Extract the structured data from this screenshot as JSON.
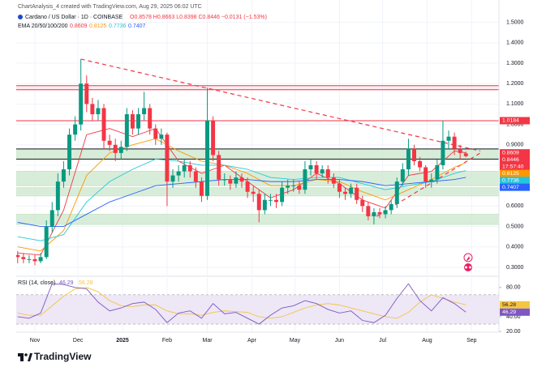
{
  "header": {
    "credit": "ChartAnalysis_4 created with TradingView.com, Aug 29, 2025 06:02 UTC"
  },
  "footer": {
    "brand": "TradingView"
  },
  "chart_data": {
    "type": "candlestick",
    "symbol": "Cardano / US Dollar · 1D · COINBASE",
    "ohlc_text": "O0.8578 H0.8663 L0.8398 C0.8446 −0.0131 (−1.53%)",
    "ema_label": "EMA 20/50/100/200",
    "countdown": "17:57:40",
    "up_color": "#089981",
    "down_color": "#f23645",
    "x": [
      0,
      4,
      8,
      12,
      16,
      20,
      24,
      28,
      32,
      36,
      40,
      44,
      48,
      52,
      56,
      60,
      64,
      68,
      72,
      76,
      80,
      84,
      88,
      92,
      96,
      100,
      104,
      108,
      112,
      116,
      120,
      124,
      128,
      132,
      136,
      140,
      144,
      148,
      152,
      156,
      160,
      164,
      168,
      172,
      176,
      180,
      184,
      188,
      192,
      196,
      200,
      204,
      208,
      212,
      216,
      220,
      224,
      228,
      232,
      236,
      240,
      244,
      248,
      252,
      256,
      260,
      264,
      268,
      272,
      276,
      280,
      284,
      288,
      292,
      296,
      300,
      304,
      308,
      312
    ],
    "open": [
      0.36,
      0.35,
      0.34,
      0.34,
      0.33,
      0.35,
      0.5,
      0.58,
      0.72,
      0.78,
      0.95,
      1.0,
      1.2,
      1.1,
      1.05,
      1.08,
      0.92,
      0.9,
      0.86,
      0.89,
      1.05,
      0.98,
      1.05,
      1.08,
      0.98,
      0.93,
      0.95,
      0.72,
      0.75,
      0.77,
      0.8,
      0.77,
      0.72,
      0.65,
      1.02,
      0.85,
      0.73,
      0.73,
      0.71,
      0.74,
      0.72,
      0.67,
      0.66,
      0.58,
      0.63,
      0.63,
      0.62,
      0.69,
      0.7,
      0.7,
      0.68,
      0.78,
      0.8,
      0.76,
      0.78,
      0.74,
      0.71,
      0.67,
      0.66,
      0.69,
      0.63,
      0.6,
      0.55,
      0.57,
      0.56,
      0.58,
      0.61,
      0.72,
      0.78,
      0.88,
      0.82,
      0.79,
      0.72,
      0.73,
      0.8,
      0.92,
      0.94,
      0.88,
      0.8578
    ],
    "high": [
      0.38,
      0.37,
      0.36,
      0.36,
      0.37,
      0.53,
      0.62,
      0.76,
      0.82,
      0.98,
      1.04,
      1.32,
      1.24,
      1.13,
      1.12,
      1.1,
      0.95,
      0.93,
      0.92,
      1.08,
      1.07,
      1.08,
      1.16,
      1.1,
      1.0,
      0.98,
      0.96,
      0.78,
      0.8,
      0.83,
      0.82,
      0.79,
      0.74,
      1.18,
      1.04,
      0.87,
      0.76,
      0.75,
      0.77,
      0.76,
      0.74,
      0.7,
      0.68,
      0.66,
      0.66,
      0.66,
      0.72,
      0.73,
      0.73,
      0.72,
      0.82,
      0.83,
      0.82,
      0.8,
      0.8,
      0.76,
      0.73,
      0.69,
      0.71,
      0.71,
      0.65,
      0.62,
      0.59,
      0.59,
      0.6,
      0.63,
      0.74,
      0.81,
      0.93,
      0.9,
      0.84,
      0.8,
      0.76,
      0.83,
      1.02,
      0.97,
      0.96,
      0.9,
      0.8663
    ],
    "low": [
      0.32,
      0.32,
      0.32,
      0.31,
      0.32,
      0.34,
      0.47,
      0.55,
      0.69,
      0.75,
      0.92,
      0.97,
      1.06,
      1.02,
      1.02,
      0.88,
      0.87,
      0.82,
      0.83,
      0.87,
      0.95,
      0.95,
      1.02,
      0.95,
      0.9,
      0.9,
      0.6,
      0.69,
      0.72,
      0.74,
      0.74,
      0.69,
      0.62,
      0.63,
      0.82,
      0.7,
      0.7,
      0.68,
      0.69,
      0.69,
      0.64,
      0.62,
      0.52,
      0.56,
      0.6,
      0.59,
      0.6,
      0.66,
      0.67,
      0.66,
      0.66,
      0.75,
      0.73,
      0.74,
      0.71,
      0.69,
      0.64,
      0.63,
      0.64,
      0.61,
      0.57,
      0.53,
      0.51,
      0.54,
      0.54,
      0.56,
      0.59,
      0.7,
      0.75,
      0.8,
      0.77,
      0.69,
      0.69,
      0.71,
      0.78,
      0.88,
      0.85,
      0.83,
      0.8398
    ],
    "close": [
      0.35,
      0.34,
      0.34,
      0.33,
      0.35,
      0.5,
      0.58,
      0.72,
      0.78,
      0.95,
      1.0,
      1.2,
      1.1,
      1.05,
      1.08,
      0.92,
      0.9,
      0.86,
      0.89,
      1.05,
      0.98,
      1.05,
      1.08,
      0.98,
      0.93,
      0.95,
      0.72,
      0.75,
      0.77,
      0.8,
      0.77,
      0.72,
      0.65,
      1.02,
      0.85,
      0.73,
      0.73,
      0.71,
      0.74,
      0.72,
      0.67,
      0.66,
      0.58,
      0.63,
      0.63,
      0.62,
      0.69,
      0.7,
      0.7,
      0.68,
      0.78,
      0.8,
      0.76,
      0.78,
      0.74,
      0.71,
      0.67,
      0.66,
      0.69,
      0.63,
      0.6,
      0.55,
      0.57,
      0.56,
      0.58,
      0.61,
      0.72,
      0.78,
      0.88,
      0.82,
      0.79,
      0.72,
      0.73,
      0.8,
      0.92,
      0.94,
      0.88,
      0.86,
      0.8446
    ],
    "xlim": [
      -1,
      335
    ],
    "xticks": [
      {
        "value": 12,
        "label": "Nov"
      },
      {
        "value": 42,
        "label": "Dec"
      },
      {
        "value": 73,
        "label": "2025"
      },
      {
        "value": 104,
        "label": "Feb"
      },
      {
        "value": 132,
        "label": "Mar"
      },
      {
        "value": 163,
        "label": "Apr"
      },
      {
        "value": 193,
        "label": "May"
      },
      {
        "value": 224,
        "label": "Jun"
      },
      {
        "value": 254,
        "label": "Jul"
      },
      {
        "value": 285,
        "label": "Aug"
      },
      {
        "value": 316,
        "label": "Sep"
      }
    ],
    "ylim": [
      0.26,
      1.57
    ],
    "yticks": [
      {
        "value": 0.3,
        "label": "0.3000"
      },
      {
        "value": 0.4,
        "label": "0.4000"
      },
      {
        "value": 0.5,
        "label": "0.5000"
      },
      {
        "value": 0.6,
        "label": "0.6000"
      },
      {
        "value": 0.7,
        "label": "0.7000"
      },
      {
        "value": 0.8,
        "label": "0.8000"
      },
      {
        "value": 0.9,
        "label": "0.9000"
      },
      {
        "value": 1.0,
        "label": "1.0000"
      },
      {
        "value": 1.1,
        "label": "1.1000"
      },
      {
        "value": 1.2,
        "label": "1.2000"
      },
      {
        "value": 1.3,
        "label": "1.3000"
      },
      {
        "value": 1.4,
        "label": "1.4000"
      },
      {
        "value": 1.5,
        "label": "1.5000"
      }
    ],
    "grid": true,
    "emas": [
      {
        "color": "#f23645",
        "x": [
          0,
          16,
          32,
          48,
          64,
          80,
          96,
          112,
          128,
          144,
          160,
          176,
          192,
          208,
          224,
          240,
          256,
          272,
          288,
          304,
          312
        ],
        "values": [
          0.37,
          0.36,
          0.58,
          0.95,
          0.98,
          0.94,
          0.98,
          0.82,
          0.76,
          0.8,
          0.72,
          0.64,
          0.68,
          0.76,
          0.71,
          0.63,
          0.59,
          0.75,
          0.77,
          0.87,
          0.8609
        ]
      },
      {
        "color": "#ff9800",
        "x": [
          0,
          16,
          32,
          48,
          64,
          80,
          96,
          112,
          128,
          144,
          160,
          176,
          192,
          208,
          224,
          240,
          256,
          272,
          288,
          304,
          312
        ],
        "values": [
          0.4,
          0.38,
          0.48,
          0.75,
          0.86,
          0.9,
          0.93,
          0.87,
          0.82,
          0.8,
          0.76,
          0.7,
          0.7,
          0.73,
          0.72,
          0.67,
          0.63,
          0.68,
          0.73,
          0.79,
          0.8125
        ]
      },
      {
        "color": "#26c6da",
        "x": [
          0,
          16,
          32,
          48,
          64,
          80,
          96,
          112,
          128,
          144,
          160,
          176,
          192,
          208,
          224,
          240,
          256,
          272,
          288,
          304,
          312
        ],
        "values": [
          0.45,
          0.43,
          0.46,
          0.62,
          0.72,
          0.78,
          0.83,
          0.82,
          0.8,
          0.8,
          0.78,
          0.74,
          0.73,
          0.74,
          0.74,
          0.71,
          0.68,
          0.7,
          0.72,
          0.76,
          0.7736
        ]
      },
      {
        "color": "#2962ff",
        "x": [
          0,
          16,
          32,
          48,
          64,
          80,
          96,
          112,
          128,
          144,
          160,
          176,
          192,
          208,
          224,
          240,
          256,
          272,
          288,
          304,
          312
        ],
        "values": [
          0.52,
          0.5,
          0.5,
          0.56,
          0.62,
          0.66,
          0.7,
          0.71,
          0.72,
          0.73,
          0.73,
          0.72,
          0.72,
          0.73,
          0.73,
          0.72,
          0.7,
          0.71,
          0.72,
          0.73,
          0.7407
        ]
      }
    ],
    "zones": [
      {
        "low": 1.17,
        "high": 1.19,
        "color": "#fce4ec"
      },
      {
        "low": 0.83,
        "high": 0.88,
        "color": "#c8e6c9"
      },
      {
        "low": 0.7,
        "high": 0.77,
        "color": "#c8e6c9"
      },
      {
        "low": 0.65,
        "high": 0.69,
        "color": "#c8e6c9"
      },
      {
        "low": 0.51,
        "high": 0.56,
        "color": "#c8e6c9"
      }
    ],
    "levels": [
      {
        "value": 1.19,
        "color": "#f23645"
      },
      {
        "value": 1.17,
        "color": "#f23645"
      },
      {
        "value": 1.0184,
        "color": "#f23645"
      },
      {
        "value": 0.88,
        "color": "#131722"
      },
      {
        "value": 0.83,
        "color": "#131722"
      }
    ],
    "trendlines": [
      {
        "color": "#f23645",
        "x": [
          44,
          322
        ],
        "y": [
          1.32,
          0.87
        ]
      },
      {
        "color": "#f23645",
        "x": [
          250,
          322
        ],
        "y": [
          0.55,
          0.86
        ]
      }
    ],
    "rsi": {
      "title": "RSI (14, close)",
      "ylim": [
        19,
        93
      ],
      "yticks": [
        {
          "value": 80,
          "label": "80.00"
        },
        {
          "value": 40,
          "label": "40.00"
        },
        {
          "value": 20,
          "label": "20.00"
        }
      ],
      "band": [
        30,
        70
      ],
      "band_color": "#ede7f6",
      "series": [
        {
          "color": "#7e57c2",
          "x": [
            0,
            8,
            16,
            24,
            32,
            40,
            48,
            56,
            64,
            72,
            80,
            88,
            96,
            104,
            112,
            120,
            128,
            136,
            144,
            152,
            160,
            168,
            176,
            184,
            192,
            200,
            208,
            216,
            224,
            232,
            240,
            248,
            256,
            264,
            272,
            280,
            288,
            296,
            304,
            312
          ],
          "values": [
            40,
            38,
            45,
            85,
            84,
            80,
            78,
            60,
            48,
            52,
            58,
            60,
            50,
            32,
            45,
            48,
            38,
            58,
            44,
            46,
            38,
            30,
            42,
            52,
            55,
            62,
            58,
            50,
            45,
            48,
            35,
            32,
            42,
            65,
            85,
            62,
            48,
            66,
            58,
            46.29
          ]
        },
        {
          "color": "#f5c542",
          "x": [
            0,
            8,
            16,
            24,
            32,
            40,
            48,
            56,
            64,
            72,
            80,
            88,
            96,
            104,
            112,
            120,
            128,
            136,
            144,
            152,
            160,
            168,
            176,
            184,
            192,
            200,
            208,
            216,
            224,
            232,
            240,
            248,
            256,
            264,
            272,
            280,
            288,
            296,
            304,
            312
          ],
          "values": [
            45,
            42,
            42,
            55,
            68,
            78,
            80,
            74,
            62,
            55,
            54,
            56,
            56,
            48,
            44,
            44,
            42,
            46,
            48,
            47,
            46,
            40,
            38,
            40,
            46,
            52,
            56,
            58,
            56,
            52,
            48,
            44,
            40,
            38,
            46,
            60,
            70,
            65,
            60,
            56.28
          ]
        }
      ]
    }
  }
}
